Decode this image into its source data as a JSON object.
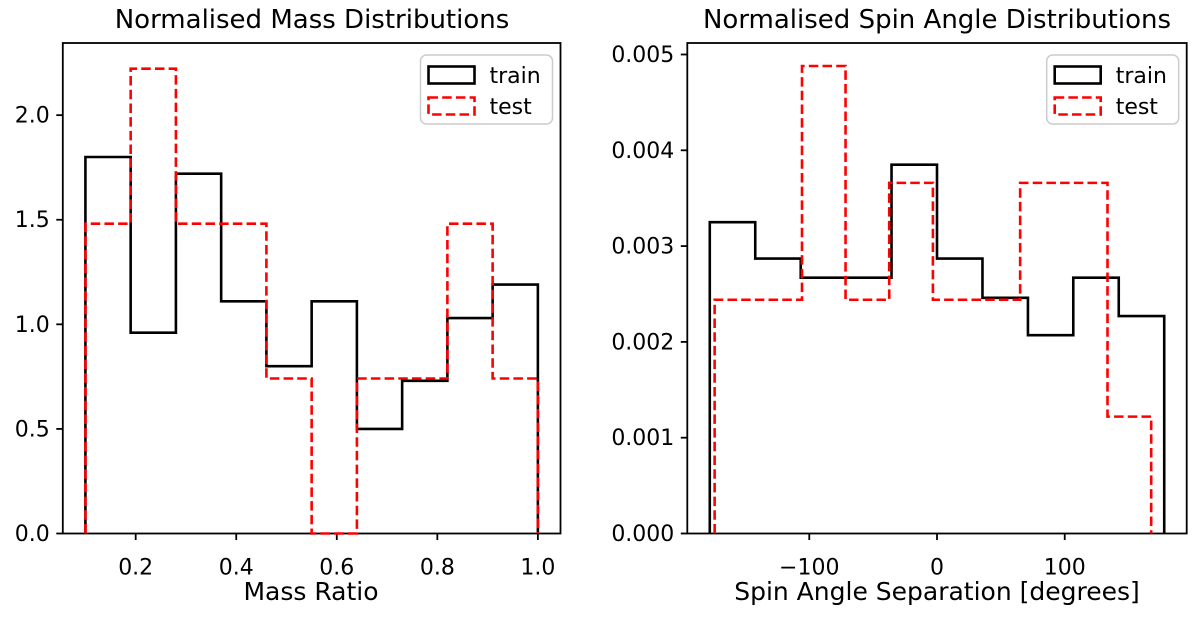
{
  "figure": {
    "background": "#ffffff",
    "text_color": "#000000",
    "spine_color": "#000000"
  },
  "chart_data": [
    {
      "type": "histogram-step",
      "title": "Normalised Mass Distributions",
      "xlabel": "Mass Ratio",
      "ylabel": "",
      "xlim": [
        0.055,
        1.045
      ],
      "ylim": [
        0,
        2.345
      ],
      "grid": false,
      "xticks": {
        "values": [
          0.2,
          0.4,
          0.6,
          0.8,
          1.0
        ],
        "labels": [
          "0.2",
          "0.4",
          "0.6",
          "0.8",
          "1.0"
        ]
      },
      "yticks": {
        "values": [
          0.0,
          0.5,
          1.0,
          1.5,
          2.0
        ],
        "labels": [
          "0.0",
          "0.5",
          "1.0",
          "1.5",
          "2.0"
        ]
      },
      "legend": {
        "position": "upper right",
        "entries": [
          "train",
          "test"
        ]
      },
      "series": [
        {
          "name": "train",
          "color": "#000000",
          "linestyle": "solid",
          "bin_edges": [
            0.1,
            0.19,
            0.28,
            0.37,
            0.46,
            0.55,
            0.64,
            0.73,
            0.82,
            0.91,
            1.0
          ],
          "values": [
            1.8,
            0.96,
            1.72,
            1.11,
            0.8,
            1.11,
            0.5,
            0.73,
            1.03,
            1.19
          ]
        },
        {
          "name": "test",
          "color": "#ff0000",
          "linestyle": "dashed",
          "bin_edges": [
            0.1,
            0.19,
            0.28,
            0.37,
            0.46,
            0.55,
            0.64,
            0.73,
            0.82,
            0.91,
            1.0
          ],
          "values": [
            1.481,
            2.222,
            1.481,
            1.481,
            0.741,
            0.0,
            0.741,
            0.741,
            1.481,
            0.741
          ]
        }
      ]
    },
    {
      "type": "histogram-step",
      "title": "Normalised Spin Angle Distributions",
      "xlabel": "Spin Angle Separation [degrees]",
      "ylabel": "",
      "xlim": [
        -195.5,
        195.5
      ],
      "ylim": [
        0,
        0.00512
      ],
      "grid": false,
      "xticks": {
        "values": [
          -100,
          0,
          100
        ],
        "labels": [
          "−100",
          "0",
          "100"
        ]
      },
      "yticks": {
        "values": [
          0.0,
          0.001,
          0.002,
          0.003,
          0.004,
          0.005
        ],
        "labels": [
          "0.000",
          "0.001",
          "0.002",
          "0.003",
          "0.004",
          "0.005"
        ]
      },
      "legend": {
        "position": "upper right",
        "entries": [
          "train",
          "test"
        ]
      },
      "series": [
        {
          "name": "train",
          "color": "#000000",
          "linestyle": "solid",
          "bin_edges": [
            -177.9,
            -142.3,
            -106.7,
            -71.2,
            -35.6,
            0.0,
            35.6,
            71.2,
            106.7,
            142.3,
            177.9
          ],
          "values": [
            0.00325,
            0.00287,
            0.00267,
            0.00267,
            0.00385,
            0.00287,
            0.00246,
            0.00207,
            0.00267,
            0.00227
          ]
        },
        {
          "name": "test",
          "color": "#ff0000",
          "linestyle": "dashed",
          "bin_edges": [
            -174.1,
            -139.9,
            -105.7,
            -71.6,
            -37.4,
            -3.2,
            31.0,
            65.1,
            99.3,
            133.5,
            167.7
          ],
          "values": [
            0.00244,
            0.00244,
            0.00488,
            0.00244,
            0.00366,
            0.00244,
            0.00244,
            0.00366,
            0.00366,
            0.00122
          ]
        }
      ]
    }
  ]
}
